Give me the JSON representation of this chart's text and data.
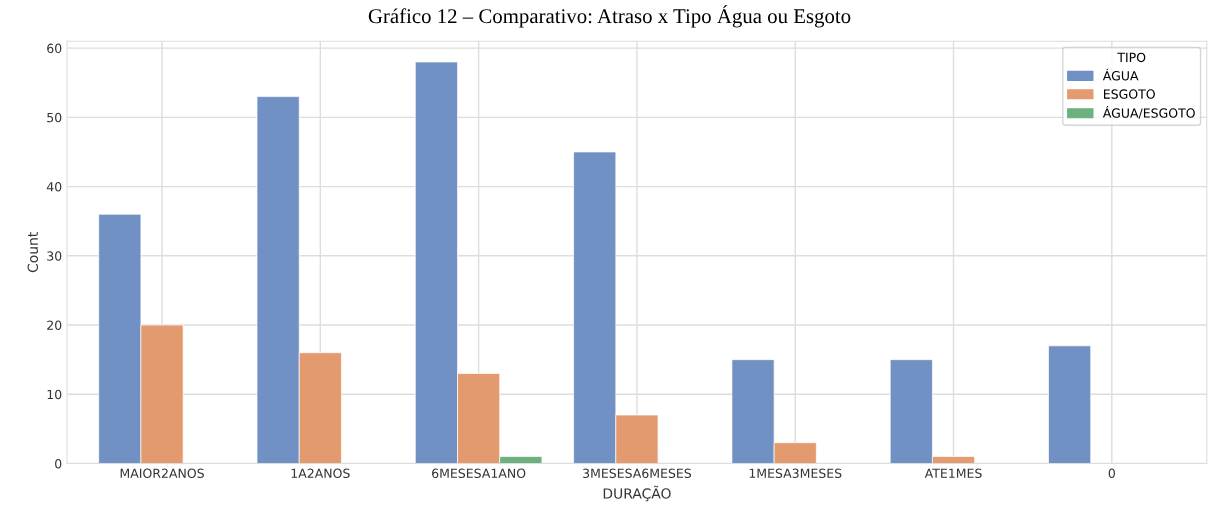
{
  "chart_data": {
    "type": "bar",
    "title": "Gráfico 12 – Comparativo: Atraso x Tipo Água ou Esgoto",
    "xlabel": "DURAÇÃO",
    "ylabel": "Count",
    "legend_title": "TIPO",
    "categories": [
      "MAIOR2ANOS",
      "1A2ANOS",
      "6MESESA1ANO",
      "3MESESA6MESES",
      "1MESA3MESES",
      "ATE1MES",
      "0"
    ],
    "series": [
      {
        "name": "ÁGUA",
        "color": "#7191c4",
        "values": [
          36,
          53,
          58,
          45,
          15,
          15,
          17
        ]
      },
      {
        "name": "ESGOTO",
        "color": "#e39a6e",
        "values": [
          20,
          16,
          13,
          7,
          3,
          1,
          0
        ]
      },
      {
        "name": "ÁGUA/ESGOTO",
        "color": "#6cb17f",
        "values": [
          0,
          0,
          1,
          0,
          0,
          0,
          0
        ]
      }
    ],
    "ylim": [
      0,
      61
    ],
    "yticks": [
      0,
      10,
      20,
      30,
      40,
      50,
      60
    ],
    "grid": true,
    "legend": "top right"
  }
}
